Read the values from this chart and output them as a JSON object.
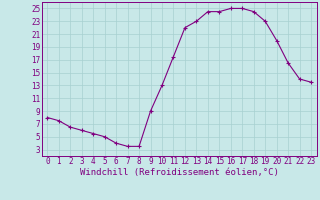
{
  "x": [
    0,
    1,
    2,
    3,
    4,
    5,
    6,
    7,
    8,
    9,
    10,
    11,
    12,
    13,
    14,
    15,
    16,
    17,
    18,
    19,
    20,
    21,
    22,
    23
  ],
  "y": [
    8,
    7.5,
    6.5,
    6,
    5.5,
    5,
    4,
    3.5,
    3.5,
    9,
    13,
    17.5,
    22,
    23,
    24.5,
    24.5,
    25,
    25,
    24.5,
    23,
    20,
    16.5,
    14,
    13.5
  ],
  "line_color": "#800080",
  "marker": "+",
  "bg_color": "#c8e8e8",
  "grid_color": "#a8d0d0",
  "xlabel": "Windchill (Refroidissement éolien,°C)",
  "ylabel_ticks": [
    3,
    5,
    7,
    9,
    11,
    13,
    15,
    17,
    19,
    21,
    23,
    25
  ],
  "xlim": [
    -0.5,
    23.5
  ],
  "ylim": [
    2,
    26
  ],
  "xticks": [
    0,
    1,
    2,
    3,
    4,
    5,
    6,
    7,
    8,
    9,
    10,
    11,
    12,
    13,
    14,
    15,
    16,
    17,
    18,
    19,
    20,
    21,
    22,
    23
  ],
  "axis_fontsize": 6.5,
  "tick_fontsize": 5.5
}
